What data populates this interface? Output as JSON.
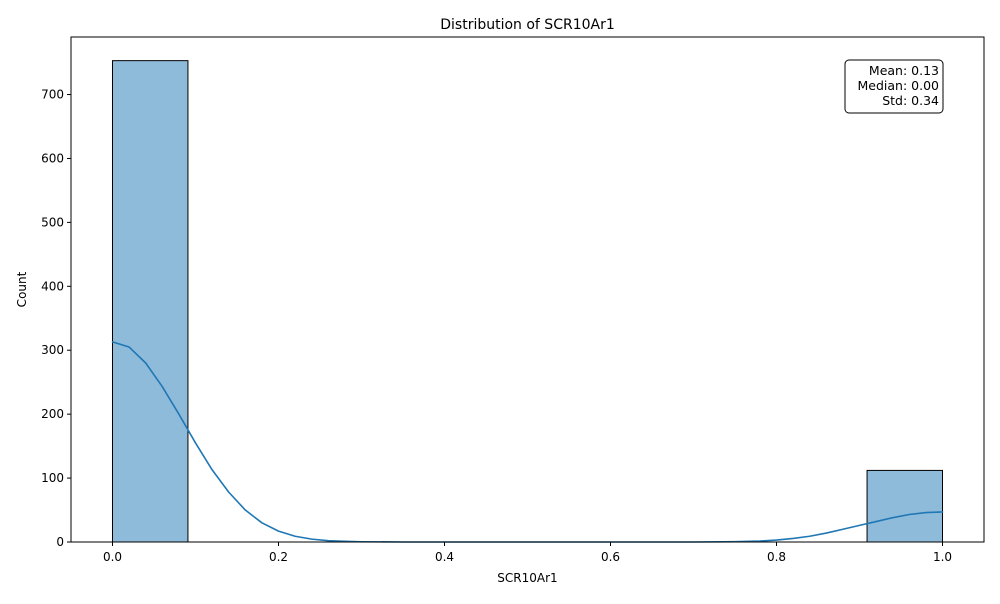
{
  "chart_data": {
    "type": "histogram",
    "title": "Distribution of SCR10Ar1",
    "xlabel": "SCR10Ar1",
    "ylabel": "Count",
    "xlim": [
      -0.05,
      1.05
    ],
    "ylim": [
      0,
      790
    ],
    "x_ticks": [
      0.0,
      0.2,
      0.4,
      0.6,
      0.8,
      1.0
    ],
    "x_tick_labels": [
      "0.0",
      "0.2",
      "0.4",
      "0.6",
      "0.8",
      "1.0"
    ],
    "y_ticks": [
      0,
      100,
      200,
      300,
      400,
      500,
      600,
      700
    ],
    "y_tick_labels": [
      "0",
      "100",
      "200",
      "300",
      "400",
      "500",
      "600",
      "700"
    ],
    "bins": [
      {
        "x0": 0.0,
        "x1": 0.0909,
        "count": 753
      },
      {
        "x0": 0.0909,
        "x1": 0.1818,
        "count": 0
      },
      {
        "x0": 0.1818,
        "x1": 0.2727,
        "count": 0
      },
      {
        "x0": 0.2727,
        "x1": 0.3636,
        "count": 0
      },
      {
        "x0": 0.3636,
        "x1": 0.4545,
        "count": 0
      },
      {
        "x0": 0.4545,
        "x1": 0.5455,
        "count": 0
      },
      {
        "x0": 0.5455,
        "x1": 0.6364,
        "count": 0
      },
      {
        "x0": 0.6364,
        "x1": 0.7273,
        "count": 0
      },
      {
        "x0": 0.7273,
        "x1": 0.8182,
        "count": 0
      },
      {
        "x0": 0.8182,
        "x1": 0.9091,
        "count": 0
      },
      {
        "x0": 0.9091,
        "x1": 1.0,
        "count": 112
      }
    ],
    "kde": {
      "x": [
        0.0,
        0.02,
        0.04,
        0.06,
        0.08,
        0.1,
        0.12,
        0.14,
        0.16,
        0.18,
        0.2,
        0.22,
        0.24,
        0.26,
        0.28,
        0.3,
        0.35,
        0.4,
        0.5,
        0.6,
        0.7,
        0.75,
        0.78,
        0.8,
        0.82,
        0.84,
        0.86,
        0.88,
        0.9,
        0.92,
        0.94,
        0.96,
        0.98,
        1.0
      ],
      "y": [
        313,
        305,
        280,
        243,
        200,
        155,
        113,
        78,
        50,
        30,
        17,
        9,
        4.5,
        2,
        1,
        0.4,
        0,
        0,
        0,
        0,
        0,
        0.5,
        1.5,
        3,
        5.5,
        9,
        14,
        20,
        26,
        32,
        38,
        43,
        46,
        47
      ]
    },
    "colors": {
      "bar_fill": "#8fbbdb",
      "bar_edge": "#000000",
      "kde_line": "#1f77b4"
    },
    "stats_box": {
      "lines": [
        "Mean: 0.13",
        "Median: 0.00",
        "Std: 0.34"
      ],
      "placement": "top-right"
    }
  }
}
